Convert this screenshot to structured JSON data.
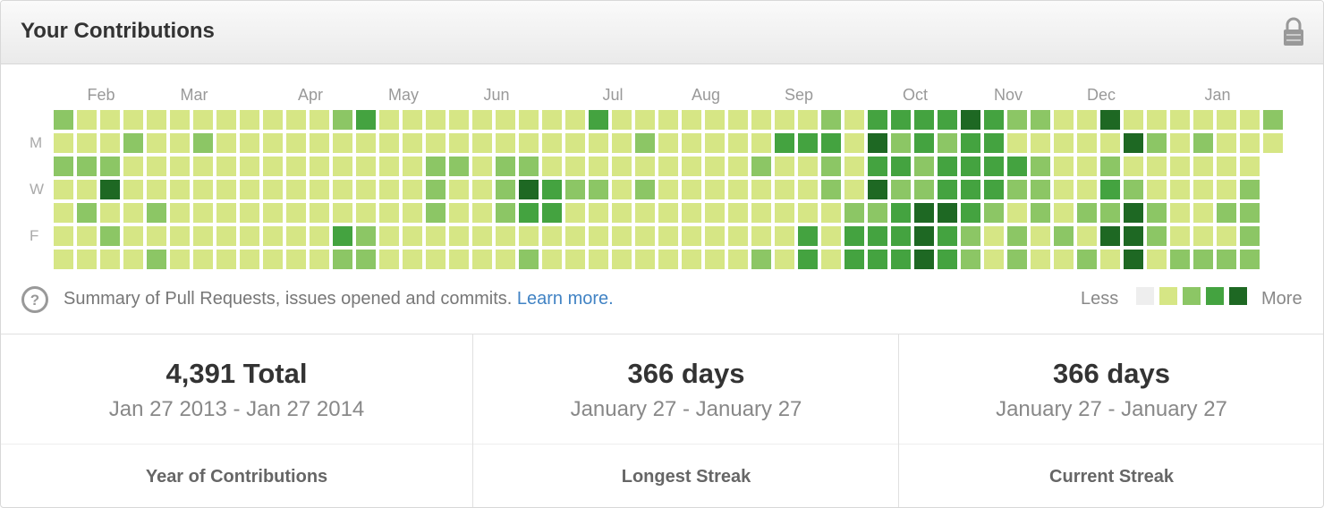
{
  "header": {
    "title": "Your Contributions"
  },
  "calendar": {
    "months": [
      "Feb",
      "Mar",
      "Apr",
      "May",
      "Jun",
      "Jul",
      "Aug",
      "Sep",
      "Oct",
      "Nov",
      "Dec",
      "Jan"
    ],
    "day_labels": [
      "M",
      "W",
      "F"
    ],
    "level_colors": [
      "#eeeeee",
      "#d6e685",
      "#8cc665",
      "#44a340",
      "#1e6823"
    ],
    "levels": [
      [
        2,
        1,
        1,
        1,
        1,
        1,
        1,
        1,
        1,
        1,
        1,
        1,
        2,
        3,
        1,
        1,
        1,
        1,
        1,
        1,
        1,
        1,
        1,
        3,
        1,
        1,
        1,
        1,
        1,
        1,
        1,
        1,
        1,
        2,
        1,
        3,
        3,
        3,
        3,
        4,
        3,
        2,
        2,
        1,
        1,
        4,
        1,
        1,
        1,
        1,
        1,
        1,
        2
      ],
      [
        1,
        1,
        1,
        2,
        1,
        1,
        2,
        1,
        1,
        1,
        1,
        1,
        1,
        1,
        1,
        1,
        1,
        1,
        1,
        1,
        1,
        1,
        1,
        1,
        1,
        2,
        1,
        1,
        1,
        1,
        1,
        3,
        3,
        3,
        1,
        4,
        2,
        3,
        2,
        3,
        3,
        1,
        1,
        1,
        1,
        1,
        4,
        2,
        1,
        2,
        1,
        1,
        1
      ],
      [
        2,
        2,
        2,
        1,
        1,
        1,
        1,
        1,
        1,
        1,
        1,
        1,
        1,
        1,
        1,
        1,
        2,
        2,
        1,
        2,
        2,
        1,
        1,
        1,
        1,
        1,
        1,
        1,
        1,
        1,
        2,
        1,
        1,
        2,
        1,
        3,
        3,
        2,
        3,
        3,
        3,
        3,
        2,
        1,
        1,
        2,
        1,
        1,
        1,
        1,
        1,
        1
      ],
      [
        1,
        1,
        4,
        1,
        1,
        1,
        1,
        1,
        1,
        1,
        1,
        1,
        1,
        1,
        1,
        1,
        2,
        1,
        1,
        2,
        4,
        3,
        2,
        2,
        1,
        2,
        1,
        1,
        1,
        1,
        1,
        1,
        1,
        2,
        1,
        4,
        2,
        2,
        3,
        3,
        3,
        2,
        2,
        1,
        1,
        3,
        2,
        1,
        1,
        1,
        1,
        2
      ],
      [
        1,
        2,
        1,
        1,
        2,
        1,
        1,
        1,
        1,
        1,
        1,
        1,
        1,
        1,
        1,
        1,
        2,
        1,
        1,
        2,
        3,
        3,
        1,
        1,
        1,
        1,
        1,
        1,
        1,
        1,
        1,
        1,
        1,
        1,
        2,
        2,
        3,
        4,
        4,
        3,
        2,
        1,
        2,
        1,
        2,
        2,
        4,
        2,
        1,
        1,
        2,
        2
      ],
      [
        1,
        1,
        2,
        1,
        1,
        1,
        1,
        1,
        1,
        1,
        1,
        1,
        3,
        2,
        1,
        1,
        1,
        1,
        1,
        1,
        1,
        1,
        1,
        1,
        1,
        1,
        1,
        1,
        1,
        1,
        1,
        1,
        3,
        1,
        3,
        3,
        3,
        4,
        3,
        2,
        1,
        2,
        1,
        2,
        1,
        4,
        4,
        2,
        1,
        1,
        1,
        2
      ],
      [
        1,
        1,
        1,
        1,
        2,
        1,
        1,
        1,
        1,
        1,
        1,
        1,
        2,
        2,
        1,
        1,
        1,
        1,
        1,
        1,
        2,
        1,
        1,
        1,
        1,
        1,
        1,
        1,
        1,
        1,
        2,
        1,
        3,
        1,
        3,
        3,
        3,
        4,
        3,
        2,
        1,
        2,
        1,
        1,
        2,
        1,
        4,
        1,
        2,
        2,
        2,
        2
      ]
    ],
    "summary": "Summary of Pull Requests, issues opened and commits.",
    "link": "Learn more.",
    "legend_less": "Less",
    "legend_more": "More"
  },
  "stats": [
    {
      "value": "4,391 Total",
      "range": "Jan 27 2013 - Jan 27 2014",
      "label": "Year of Contributions"
    },
    {
      "value": "366 days",
      "range": "January 27 - January 27",
      "label": "Longest Streak"
    },
    {
      "value": "366 days",
      "range": "January 27 - January 27",
      "label": "Current Streak"
    }
  ]
}
